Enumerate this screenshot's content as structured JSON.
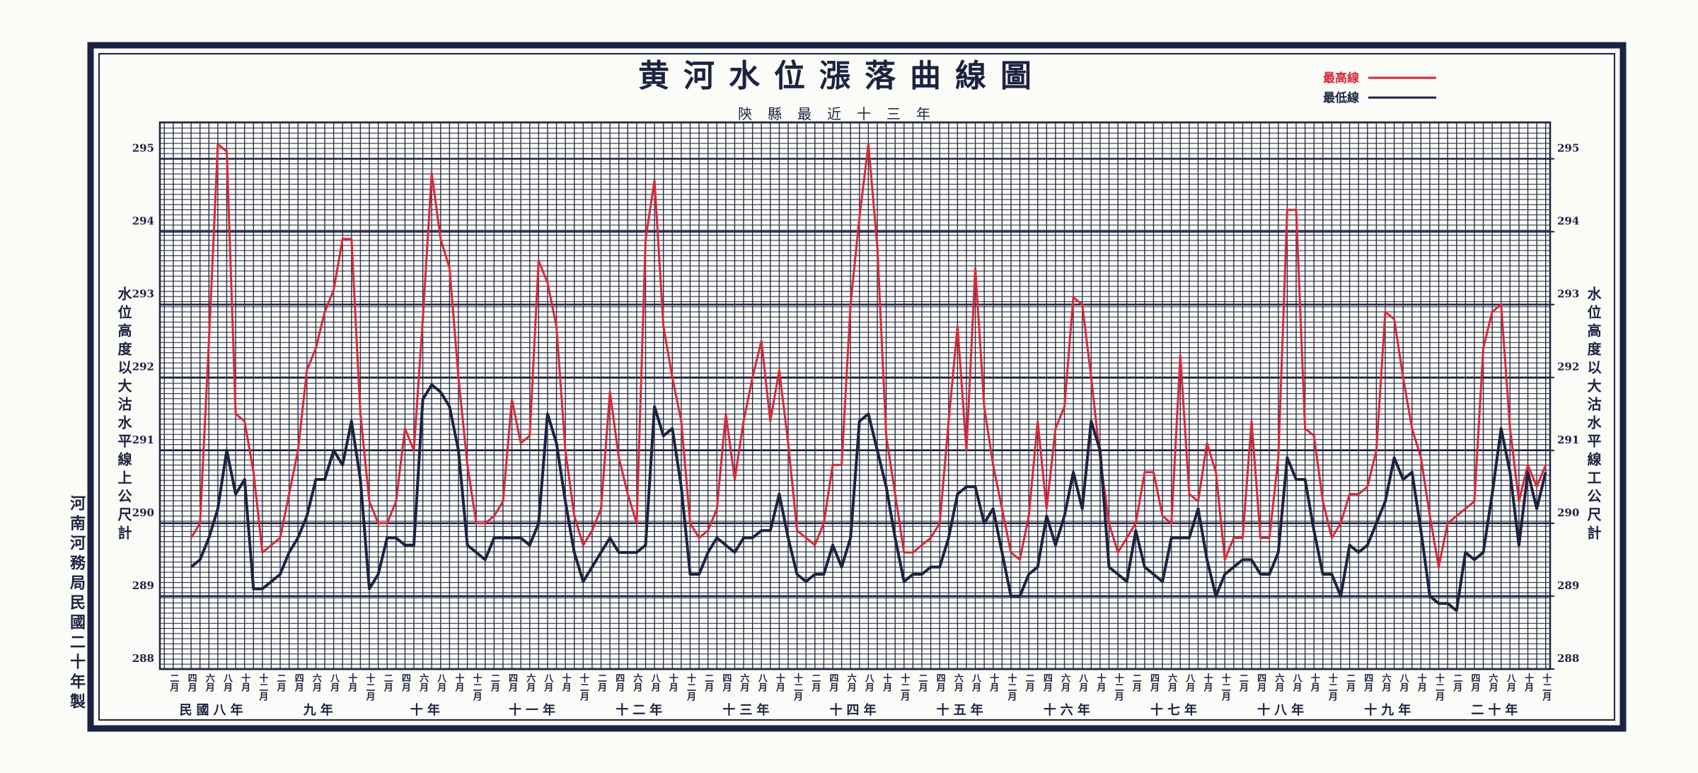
{
  "chart_data": {
    "type": "line",
    "title": "黄河水位漲落曲線圖",
    "subtitle": "陝縣最近十三年",
    "y_label": "水位高度以大沽水平線上公尺計",
    "y2_label": "水位高度以大沽水平線工公尺計",
    "note": "河南河務局民國二十年製",
    "legend_position": "top-right",
    "grid": true,
    "ylim": [
      288,
      295.5
    ],
    "yticks": [
      288,
      289,
      290,
      291,
      292,
      293,
      294,
      295
    ],
    "y2lim": [
      288,
      295.5
    ],
    "y2ticks": [
      288,
      289,
      290,
      291,
      292,
      293,
      294,
      295
    ],
    "year_labels": [
      "民國八年",
      "九年",
      "十年",
      "十一年",
      "十二年",
      "十三年",
      "十四年",
      "十五年",
      "十六年",
      "十七年",
      "十八年",
      "十九年",
      "二十年"
    ],
    "categories": [
      null,
      "二月",
      null,
      "四月",
      null,
      "六月",
      null,
      "八月",
      null,
      "十月",
      null,
      "十二月",
      null,
      "二月",
      null,
      "四月",
      null,
      "六月",
      null,
      "八月",
      null,
      "十月",
      null,
      "十二月",
      null,
      "二月",
      null,
      "四月",
      null,
      "六月",
      null,
      "八月",
      null,
      "十月",
      null,
      "十二月",
      null,
      "二月",
      null,
      "四月",
      null,
      "六月",
      null,
      "八月",
      null,
      "十月",
      null,
      "十二月",
      null,
      "二月",
      null,
      "四月",
      null,
      "六月",
      null,
      "八月",
      null,
      "十月",
      null,
      "十二月",
      null,
      "二月",
      null,
      "四月",
      null,
      "六月",
      null,
      "八月",
      null,
      "十月",
      null,
      "十二月",
      null,
      "二月",
      null,
      "四月",
      null,
      "六月",
      null,
      "八月",
      null,
      "十月",
      null,
      "十二月",
      null,
      "二月",
      null,
      "四月",
      null,
      "六月",
      null,
      "八月",
      null,
      "十月",
      null,
      "十二月",
      null,
      "二月",
      null,
      "四月",
      null,
      "六月",
      null,
      "八月",
      null,
      "十月",
      null,
      "十二月",
      null,
      "二月",
      null,
      "四月",
      null,
      "六月",
      null,
      "八月",
      null,
      "十月",
      null,
      "十二月",
      null,
      "二月",
      null,
      "四月",
      null,
      "六月",
      null,
      "八月",
      null,
      "十月",
      null,
      "十二月",
      null,
      "二月",
      null,
      "四月",
      null,
      "六月",
      null,
      "八月",
      null,
      "十月",
      null,
      "十二月",
      null,
      "二月",
      null,
      "四月",
      null,
      "六月",
      null,
      "八月",
      null,
      "十月",
      null,
      "十二月"
    ],
    "series": [
      {
        "name": "最高線",
        "color": "#d8283a",
        "values": [
          null,
          null,
          null,
          289.8,
          290.0,
          292.5,
          295.2,
          295.1,
          291.5,
          291.4,
          290.7,
          289.6,
          289.7,
          289.8,
          290.4,
          291.0,
          292.1,
          292.4,
          292.9,
          293.2,
          293.9,
          293.9,
          291.5,
          290.3,
          290.0,
          290.0,
          290.3,
          291.3,
          291.0,
          292.8,
          294.8,
          293.9,
          293.5,
          292.0,
          290.8,
          290.0,
          290.0,
          290.1,
          290.3,
          291.7,
          291.1,
          291.2,
          293.6,
          293.3,
          292.7,
          291.0,
          290.1,
          289.7,
          289.9,
          290.2,
          291.8,
          290.9,
          290.4,
          290.0,
          293.9,
          294.7,
          292.7,
          292.0,
          291.4,
          290.0,
          289.8,
          289.9,
          290.2,
          291.5,
          290.6,
          291.4,
          292.0,
          292.5,
          291.4,
          292.1,
          291.1,
          289.9,
          289.8,
          289.7,
          290.0,
          290.8,
          290.8,
          293.0,
          294.2,
          295.2,
          293.8,
          291.2,
          290.4,
          289.6,
          289.6,
          289.7,
          289.8,
          290.0,
          291.4,
          292.7,
          291.0,
          293.5,
          291.6,
          290.8,
          290.2,
          289.6,
          289.5,
          290.1,
          291.4,
          290.2,
          291.3,
          291.6,
          293.1,
          293.0,
          292.0,
          290.9,
          290.0,
          289.6,
          289.8,
          290.0,
          290.7,
          290.7,
          290.1,
          290.0,
          292.3,
          290.4,
          290.3,
          291.1,
          290.7,
          289.5,
          289.8,
          289.8,
          291.4,
          289.8,
          289.8,
          290.9,
          294.3,
          294.3,
          291.3,
          291.2,
          290.3,
          289.8,
          290.0,
          290.4,
          290.4,
          290.5,
          291.0,
          292.9,
          292.8,
          292.0,
          291.3,
          290.9,
          290.1,
          289.4,
          290.0,
          290.1,
          290.2,
          290.3,
          292.4,
          292.9,
          293.0,
          291.3,
          290.3,
          290.8,
          290.5,
          290.8
        ]
      },
      {
        "name": "最低線",
        "color": "#1c2340",
        "values": [
          null,
          null,
          null,
          289.4,
          289.5,
          289.8,
          290.2,
          291.0,
          290.4,
          290.6,
          289.1,
          289.1,
          289.2,
          289.3,
          289.6,
          289.8,
          290.1,
          290.6,
          290.6,
          291.0,
          290.8,
          291.4,
          290.6,
          289.1,
          289.3,
          289.8,
          289.8,
          289.7,
          289.7,
          291.7,
          291.9,
          291.8,
          291.6,
          291.0,
          289.7,
          289.6,
          289.5,
          289.8,
          289.8,
          289.8,
          289.8,
          289.7,
          290.0,
          291.5,
          291.1,
          290.3,
          289.6,
          289.2,
          289.4,
          289.6,
          289.8,
          289.6,
          289.6,
          289.6,
          289.7,
          291.6,
          291.2,
          291.3,
          290.5,
          289.3,
          289.3,
          289.6,
          289.8,
          289.7,
          289.6,
          289.8,
          289.8,
          289.9,
          289.9,
          290.4,
          289.8,
          289.3,
          289.2,
          289.3,
          289.3,
          289.7,
          289.4,
          289.8,
          291.4,
          291.5,
          291.0,
          290.5,
          289.8,
          289.2,
          289.3,
          289.3,
          289.4,
          289.4,
          289.8,
          290.4,
          290.5,
          290.5,
          290.0,
          290.2,
          289.6,
          289.0,
          289.0,
          289.3,
          289.4,
          290.1,
          289.7,
          290.1,
          290.7,
          290.2,
          291.4,
          291.0,
          289.4,
          289.3,
          289.2,
          289.9,
          289.4,
          289.3,
          289.2,
          289.8,
          289.8,
          289.8,
          290.2,
          289.5,
          289.0,
          289.3,
          289.4,
          289.5,
          289.5,
          289.3,
          289.3,
          289.6,
          290.9,
          290.6,
          290.6,
          289.9,
          289.3,
          289.3,
          289.0,
          289.7,
          289.6,
          289.7,
          290.0,
          290.3,
          290.9,
          290.6,
          290.7,
          289.9,
          289.0,
          288.9,
          288.9,
          288.8,
          289.6,
          289.5,
          289.6,
          290.4,
          291.3,
          290.7,
          289.7,
          290.7,
          290.2,
          290.7
        ]
      }
    ]
  }
}
